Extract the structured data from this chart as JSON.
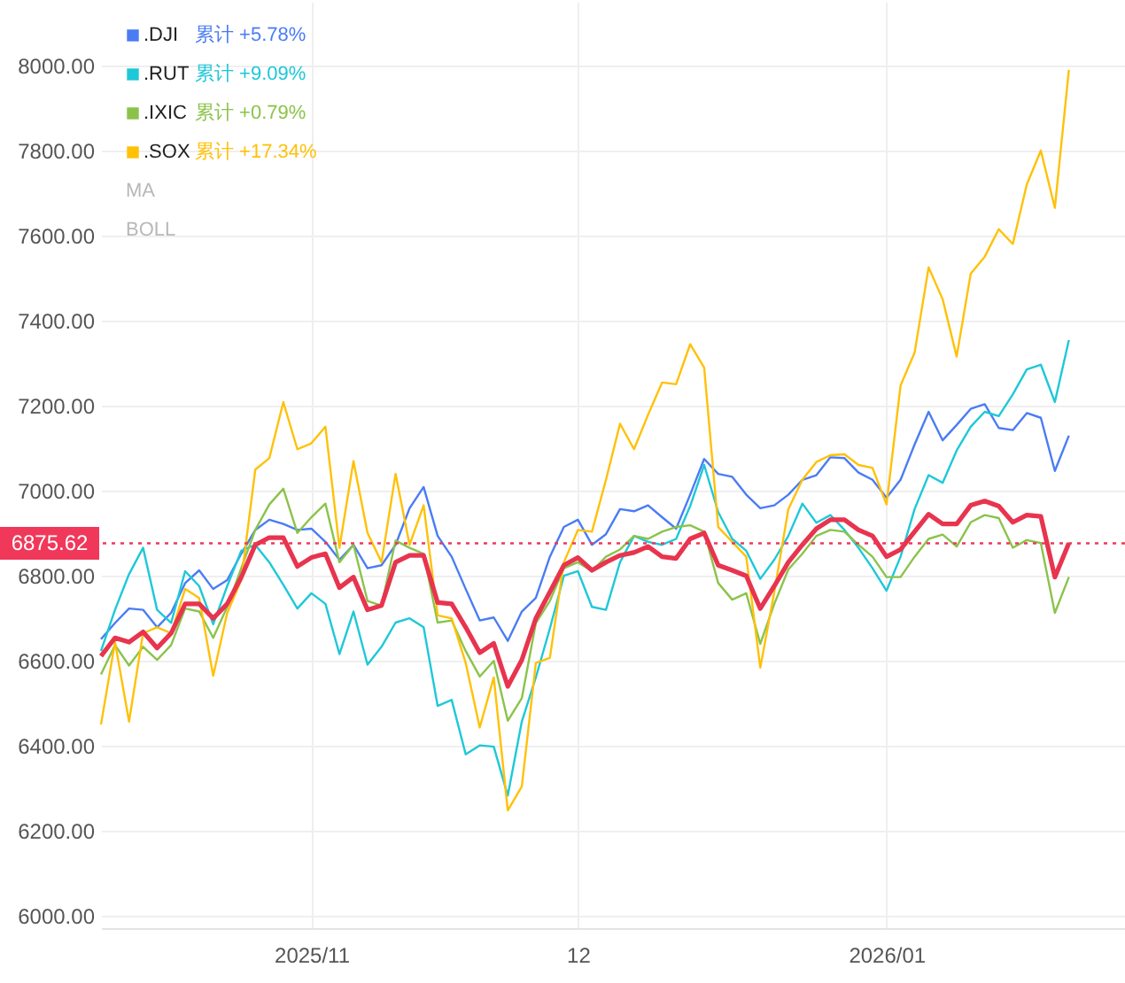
{
  "chart_data": {
    "type": "line",
    "categories": [
      null,
      null,
      null,
      null,
      null,
      null,
      null,
      null,
      null,
      null,
      null,
      null,
      null,
      null,
      null,
      "2025/11",
      null,
      null,
      null,
      null,
      null,
      null,
      null,
      null,
      null,
      null,
      null,
      null,
      null,
      null,
      null,
      null,
      null,
      null,
      "12",
      null,
      null,
      null,
      null,
      null,
      null,
      null,
      null,
      null,
      null,
      null,
      null,
      null,
      null,
      null,
      null,
      null,
      null,
      null,
      null,
      null,
      "2026/01",
      null,
      null,
      null,
      null,
      null,
      null,
      null,
      null,
      null,
      null,
      null,
      null,
      null
    ],
    "series": [
      {
        "name": ".DJI",
        "color": "#4a7cf4",
        "values": [
          6650,
          6688,
          6722,
          6719,
          6678,
          6712,
          6782,
          6812,
          6768,
          6789,
          6851,
          6907,
          6931,
          6921,
          6907,
          6910,
          6879,
          6837,
          6872,
          6817,
          6824,
          6872,
          6958,
          7008,
          6893,
          6844,
          6768,
          6694,
          6701,
          6646,
          6715,
          6747,
          6844,
          6914,
          6931,
          6872,
          6897,
          6956,
          6951,
          6965,
          6937,
          6910,
          6990,
          7074,
          7039,
          7032,
          6990,
          6958,
          6965,
          6990,
          7025,
          7036,
          7078,
          7076,
          7042,
          7025,
          6983,
          7025,
          7108,
          7185,
          7118,
          7154,
          7192,
          7203,
          7147,
          7142,
          7182,
          7171,
          7046,
          7129
        ]
      },
      {
        "name": ".RUT",
        "color": "#1ec8d8",
        "values": [
          6622,
          6719,
          6803,
          6865,
          6719,
          6688,
          6810,
          6775,
          6685,
          6775,
          6858,
          6872,
          6831,
          6778,
          6722,
          6758,
          6733,
          6615,
          6715,
          6590,
          6632,
          6689,
          6699,
          6678,
          6493,
          6507,
          6379,
          6400,
          6397,
          6282,
          6456,
          6560,
          6675,
          6799,
          6810,
          6726,
          6719,
          6831,
          6893,
          6879,
          6872,
          6886,
          6963,
          7060,
          6949,
          6886,
          6858,
          6792,
          6837,
          6893,
          6969,
          6924,
          6942,
          6907,
          6865,
          6817,
          6764,
          6844,
          6956,
          7036,
          7018,
          7094,
          7150,
          7185,
          7175,
          7226,
          7285,
          7296,
          7208,
          7354
        ]
      },
      {
        "name": ".IXIC",
        "color": "#8bc34a",
        "values": [
          6567,
          6636,
          6588,
          6632,
          6601,
          6636,
          6722,
          6715,
          6653,
          6726,
          6817,
          6907,
          6967,
          7004,
          6900,
          6937,
          6969,
          6831,
          6872,
          6740,
          6729,
          6882,
          6865,
          6851,
          6689,
          6694,
          6622,
          6562,
          6599,
          6458,
          6511,
          6688,
          6740,
          6817,
          6831,
          6810,
          6844,
          6861,
          6893,
          6886,
          6903,
          6914,
          6918,
          6903,
          6782,
          6743,
          6758,
          6639,
          6733,
          6814,
          6851,
          6893,
          6907,
          6903,
          6872,
          6844,
          6796,
          6796,
          6844,
          6886,
          6896,
          6868,
          6925,
          6942,
          6935,
          6865,
          6883,
          6876,
          6712,
          6796
        ]
      },
      {
        "name": ".SOX",
        "color": "#ffc107",
        "values": [
          6449,
          6643,
          6456,
          6664,
          6678,
          6664,
          6768,
          6747,
          6564,
          6712,
          6789,
          7049,
          7076,
          7208,
          7097,
          7111,
          7150,
          6865,
          7069,
          6900,
          6831,
          7039,
          6872,
          6965,
          6706,
          6699,
          6594,
          6442,
          6560,
          6247,
          6303,
          6594,
          6606,
          6831,
          6907,
          6903,
          7025,
          7157,
          7097,
          7178,
          7254,
          7250,
          7344,
          7289,
          6914,
          6879,
          6844,
          6583,
          6761,
          6956,
          7025,
          7067,
          7083,
          7085,
          7060,
          7053,
          6967,
          7247,
          7324,
          7525,
          7450,
          7315,
          7510,
          7550,
          7615,
          7580,
          7720,
          7800,
          7665,
          7990
        ]
      },
      {
        "color": "#e8344e",
        "values": [
          6610,
          6653,
          6643,
          6667,
          6629,
          6664,
          6733,
          6733,
          6699,
          6733,
          6796,
          6872,
          6889,
          6889,
          6821,
          6842,
          6851,
          6771,
          6796,
          6719,
          6729,
          6831,
          6847,
          6847,
          6736,
          6733,
          6678,
          6618,
          6640,
          6539,
          6601,
          6699,
          6761,
          6824,
          6842,
          6812,
          6831,
          6847,
          6854,
          6868,
          6844,
          6840,
          6886,
          6900,
          6824,
          6812,
          6799,
          6722,
          6775,
          6831,
          6872,
          6910,
          6931,
          6931,
          6907,
          6893,
          6844,
          6861,
          6903,
          6944,
          6921,
          6921,
          6965,
          6975,
          6963,
          6925,
          6942,
          6939,
          6796,
          6876
        ]
      }
    ],
    "ylim": [
      5970,
      8150
    ],
    "yticks": [
      {
        "value": 6000,
        "label": "6000.00"
      },
      {
        "value": 6200,
        "label": "6200.00"
      },
      {
        "value": 6400,
        "label": "6400.00"
      },
      {
        "value": 6600,
        "label": "6600.00"
      },
      {
        "value": 6800,
        "label": "6800.00"
      },
      {
        "value": 7000,
        "label": "7000.00"
      },
      {
        "value": 7200,
        "label": "7200.00"
      },
      {
        "value": 7400,
        "label": "7400.00"
      },
      {
        "value": 7600,
        "label": "7600.00"
      },
      {
        "value": 7800,
        "label": "7800.00"
      },
      {
        "value": 8000,
        "label": "8000.00"
      }
    ],
    "ref_lines": [
      {
        "axis": "y",
        "value": 6875.62,
        "label": "6875.62",
        "color": "#f0385a",
        "line_style": "dotted"
      }
    ],
    "annotations": [
      "累计 +5.78%",
      "累计 +9.09%",
      "累计 +0.79%",
      "累计 +17.34%",
      "MA",
      "BOLL"
    ],
    "grid": true,
    "legend": "top left",
    "marker": "none",
    "line_style": "solid"
  }
}
